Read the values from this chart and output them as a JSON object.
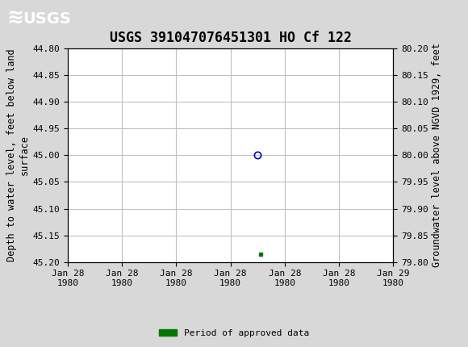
{
  "title": "USGS 391047076451301 HO Cf 122",
  "ylabel_left": "Depth to water level, feet below land\nsurface",
  "ylabel_right": "Groundwater level above NGVD 1929, feet",
  "ylim_left": [
    45.2,
    44.8
  ],
  "ylim_right": [
    79.8,
    80.2
  ],
  "yticks_left": [
    44.8,
    44.85,
    44.9,
    44.95,
    45.0,
    45.05,
    45.1,
    45.15,
    45.2
  ],
  "yticks_right": [
    80.2,
    80.15,
    80.1,
    80.05,
    80.0,
    79.95,
    79.9,
    79.85,
    79.8
  ],
  "xtick_labels": [
    "Jan 28\n1980",
    "Jan 28\n1980",
    "Jan 28\n1980",
    "Jan 28\n1980",
    "Jan 28\n1980",
    "Jan 28\n1980",
    "Jan 29\n1980"
  ],
  "data_point_x": 3.5,
  "data_point_y_circle": 45.0,
  "data_point_y_square": 45.185,
  "circle_color": "#0000cc",
  "square_color": "#007700",
  "background_color": "#d8d8d8",
  "plot_bg_color": "#ffffff",
  "header_color": "#006633",
  "header_text_color": "#ffffff",
  "grid_color": "#c0c0c0",
  "legend_label": "Period of approved data",
  "legend_color": "#007700",
  "font_family": "monospace",
  "title_fontsize": 12,
  "axis_label_fontsize": 8.5,
  "tick_fontsize": 8,
  "x_range": [
    0,
    6
  ]
}
